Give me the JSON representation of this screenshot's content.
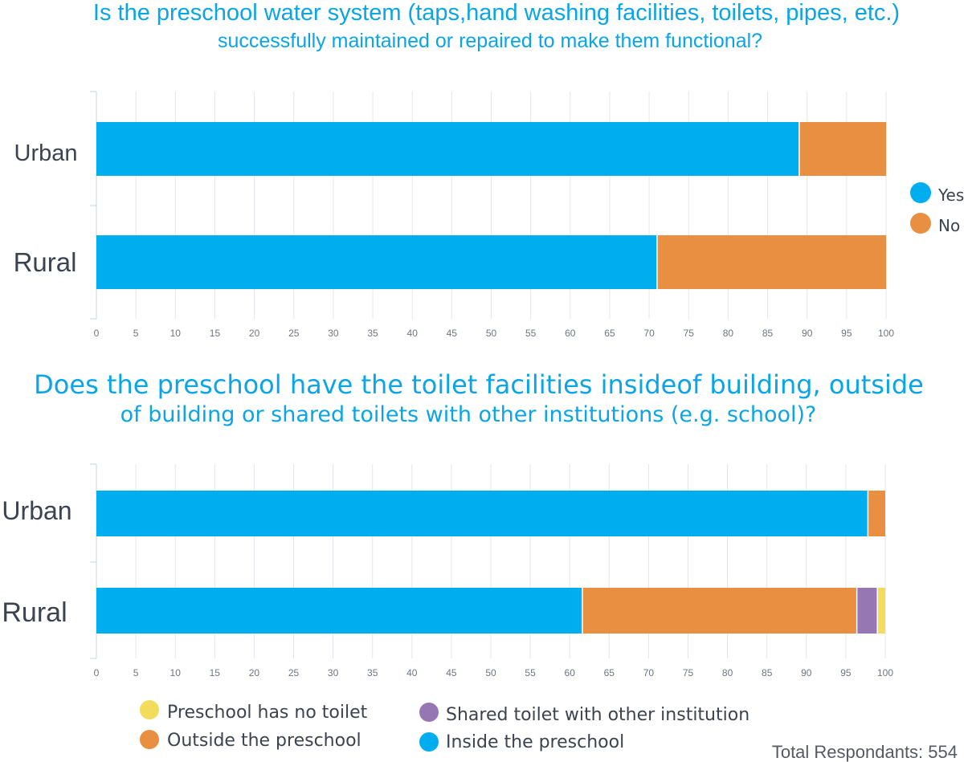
{
  "colors": {
    "Inside the preschool": "#00aeef",
    "Yes": "#00aeef",
    "No": "#e98f42",
    "Outside the preschool": "#e98f42",
    "Shared toilet with other institution": "#9677b3",
    "Preschool has no toilet": "#f2dc5a"
  },
  "chart_data": [
    {
      "type": "bar",
      "orientation": "horizontal",
      "stacked": true,
      "title_lines": [
        "Is the preschool water system (taps,hand washing facilities, toilets, pipes, etc.)",
        "successfully maintained or repaired to make them functional?"
      ],
      "categories": [
        "Urban",
        "Rural"
      ],
      "series": [
        {
          "name": "Yes",
          "values": [
            89,
            71
          ]
        },
        {
          "name": "No",
          "values": [
            11,
            29
          ]
        }
      ],
      "xlim": [
        0,
        100
      ],
      "xticks": [
        "0",
        "5",
        "10",
        "15",
        "20",
        "25",
        "30",
        "35",
        "40",
        "45",
        "50",
        "55",
        "60",
        "65",
        "70",
        "75",
        "80",
        "85",
        "90",
        "95",
        "100"
      ],
      "legend": [
        "Yes",
        "No"
      ],
      "legend_position": "right",
      "grid": true
    },
    {
      "type": "bar",
      "orientation": "horizontal",
      "stacked": true,
      "title_lines": [
        "Does the preschool have the toilet facilities insideof building, outside",
        "of building or shared toilets with other institutions (e.g. school)?"
      ],
      "categories": [
        "Urban",
        "Rural"
      ],
      "series": [
        {
          "name": "Inside the preschool",
          "values": [
            97.8,
            61.6
          ]
        },
        {
          "name": "Outside the preschool",
          "values": [
            2.2,
            34.8
          ]
        },
        {
          "name": "Shared toilet with other institution",
          "values": [
            0,
            2.6
          ]
        },
        {
          "name": "Preschool has no toilet",
          "values": [
            0,
            1.0
          ]
        }
      ],
      "xlim": [
        0,
        100
      ],
      "xticks": [
        "0",
        "5",
        "10",
        "15",
        "20",
        "25",
        "30",
        "35",
        "40",
        "45",
        "50",
        "55",
        "60",
        "65",
        "70",
        "75",
        "80",
        "85",
        "90",
        "95",
        "100"
      ],
      "legend": [
        "Preschool has no toilet",
        "Shared toilet with other institution",
        "Outside the preschool",
        "Inside the preschool"
      ],
      "legend_position": "bottom",
      "grid": true
    }
  ],
  "footer": {
    "total_respondents": "Total Respondants: 554"
  }
}
